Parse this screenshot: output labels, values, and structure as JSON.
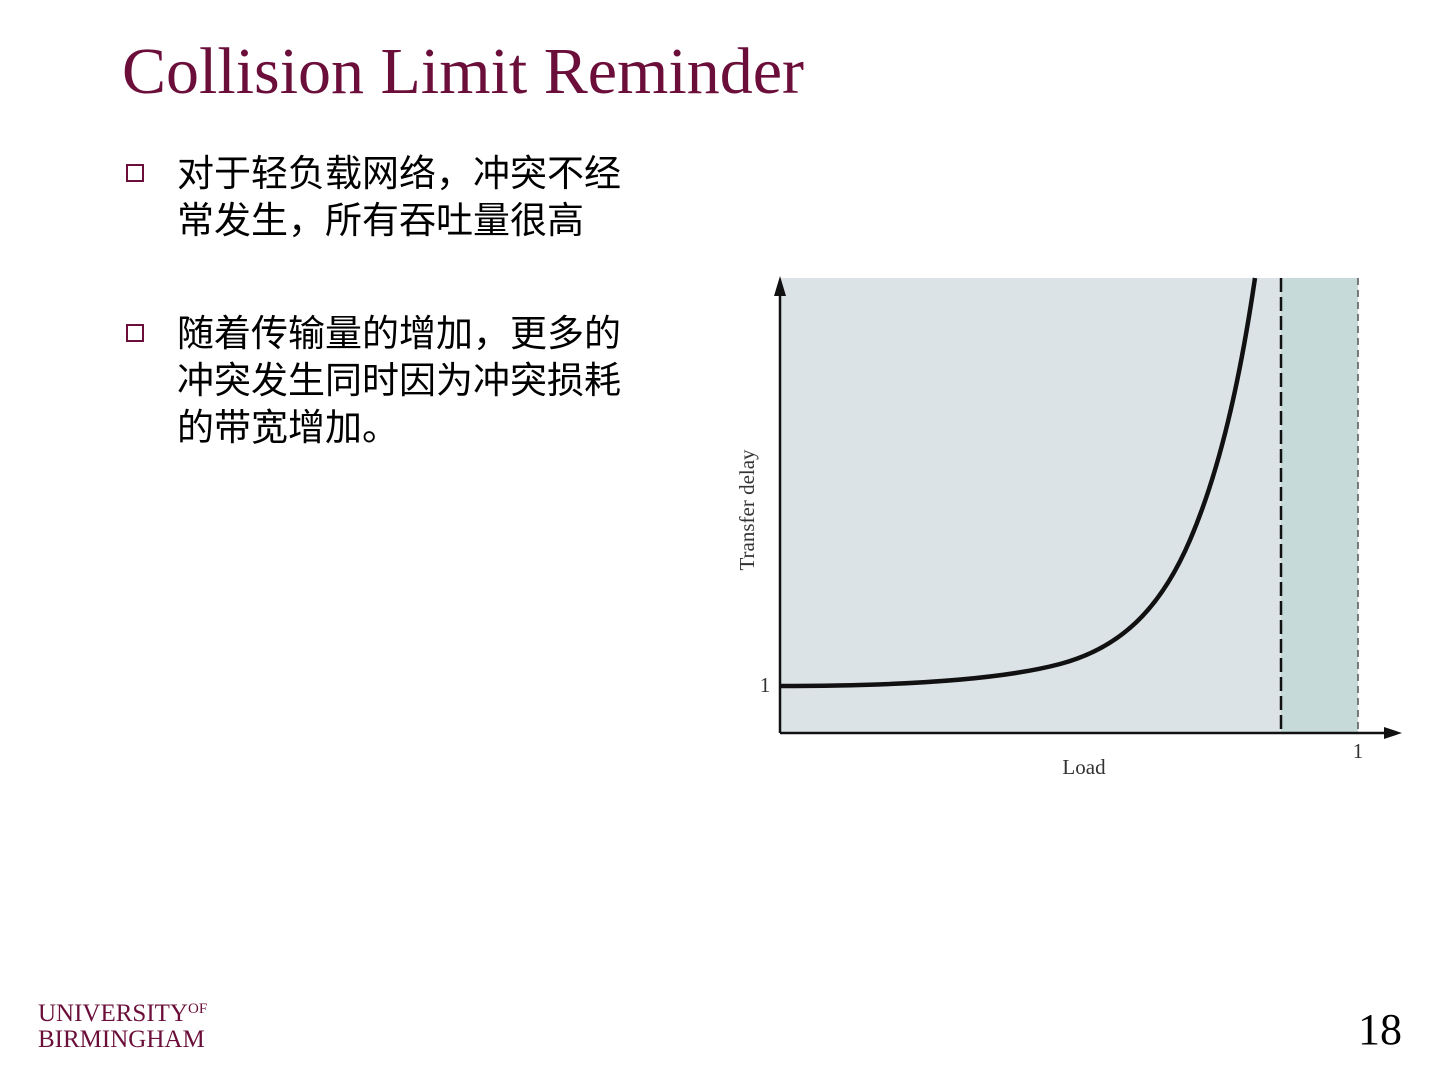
{
  "title": "Collision Limit Reminder",
  "bullets": [
    "对于轻负载网络，冲突不经常发生，所有吞吐量很高",
    "随着传输量的增加，更多的冲突发生同时因为冲突损耗的带宽增加。"
  ],
  "figure": {
    "y_label": "Transfer delay",
    "x_label": "Load",
    "y_tick": "1",
    "x_tick": "1"
  },
  "logo": {
    "line1": "UNIVERSITY",
    "of": "OF",
    "line2": "BIRMINGHAM"
  },
  "page_number": "18"
}
